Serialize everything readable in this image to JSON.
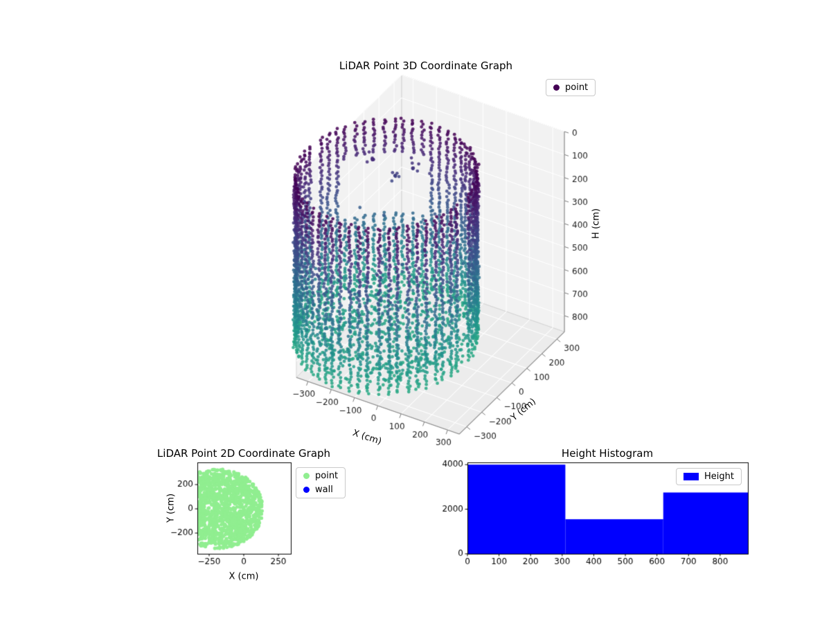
{
  "figure": {
    "background": "#ffffff"
  },
  "chart_data": [
    {
      "id": "lidar-3d",
      "type": "scatter",
      "projection": "3d",
      "title": "LiDAR Point 3D Coordinate Graph",
      "xlabel": "X (cm)",
      "ylabel": "Y (cm)",
      "zlabel": "H (cm)",
      "xlim": [
        -350,
        350
      ],
      "ylim": [
        -350,
        350
      ],
      "zlim": [
        0,
        870
      ],
      "xticks": [
        -300,
        -200,
        -100,
        0,
        100,
        200,
        300
      ],
      "yticks": [
        -300,
        -200,
        -100,
        0,
        100,
        200,
        300
      ],
      "zticks": [
        0,
        100,
        200,
        300,
        400,
        500,
        600,
        700,
        800
      ],
      "zaxis_inverted": true,
      "grid": true,
      "colormap": "viridis",
      "color_by": "height",
      "legend": [
        {
          "label": "point",
          "color": "#440154",
          "marker": "circle"
        }
      ],
      "point_cloud": {
        "shape": "cylinder",
        "center": [
          -190,
          0
        ],
        "radius": 330,
        "height_range": [
          150,
          870
        ],
        "columns": 58,
        "column_step_cm": 12,
        "opening_sector_deg": [
          95,
          152
        ],
        "opening_height_gap": [
          300,
          560
        ],
        "floor_points": 650,
        "floor_height_range": [
          780,
          870
        ],
        "interior_noise_points": 140
      }
    },
    {
      "id": "lidar-2d",
      "type": "scatter",
      "title": "LiDAR Point 2D Coordinate Graph",
      "xlabel": "X (cm)",
      "ylabel": "Y (cm)",
      "xlim": [
        -335,
        340
      ],
      "ylim": [
        -371,
        383
      ],
      "xticks": [
        -250,
        0,
        250
      ],
      "yticks": [
        -200,
        0,
        200
      ],
      "grid": false,
      "legend": [
        {
          "label": "point",
          "color": "#90ee90",
          "marker": "circle"
        },
        {
          "label": "wall",
          "color": "#0000ff",
          "marker": "circle"
        }
      ],
      "blob": {
        "center": [
          -190,
          0
        ],
        "radius": 330,
        "color": "#90ee90",
        "points": 1600
      }
    },
    {
      "id": "height-histogram",
      "type": "bar",
      "title": "Height Histogram",
      "xlabel": "",
      "ylabel": "",
      "xlim": [
        0,
        888
      ],
      "ylim": [
        0,
        4100
      ],
      "xticks": [
        0,
        100,
        200,
        300,
        400,
        500,
        600,
        700,
        800
      ],
      "yticks": [
        0,
        2000,
        4000
      ],
      "grid": false,
      "color": "#0000ff",
      "legend": [
        {
          "label": "Height",
          "color": "#0000ff",
          "marker": "rect"
        }
      ],
      "bars": [
        {
          "x0": 0,
          "x1": 310,
          "count": 4000
        },
        {
          "x0": 310,
          "x1": 620,
          "count": 1550
        },
        {
          "x0": 620,
          "x1": 888,
          "count": 2750
        }
      ]
    }
  ]
}
